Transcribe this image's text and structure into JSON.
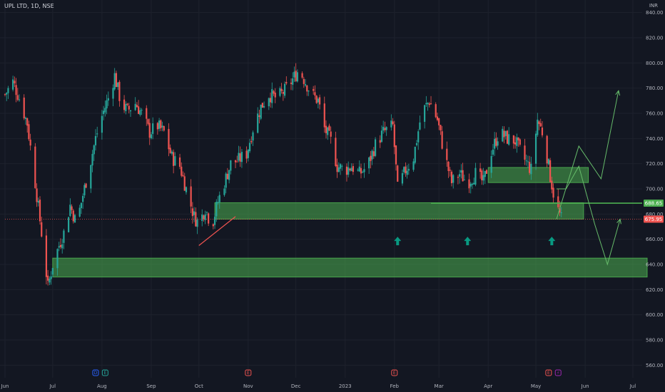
{
  "symbol": {
    "name": "UPL LTD",
    "interval": "1D",
    "exchange": "NSE",
    "title": "UPL LTD, 1D, NSE"
  },
  "currency": "INR",
  "colors": {
    "background": "#131722",
    "up": "#26a69a",
    "down": "#ef5350",
    "zone": "#4caf50",
    "arrow": "#089981",
    "projection": "#66bb6a",
    "text": "#b2b5be"
  },
  "chart_data": {
    "type": "candlestick",
    "y_range": [
      550,
      850
    ],
    "y_ticks": [
      560,
      580,
      600,
      620,
      640,
      660,
      680,
      700,
      720,
      740,
      760,
      780,
      800,
      820,
      840
    ],
    "y_tick_labels": [
      "560.00",
      "580.00",
      "600.00",
      "620.00",
      "640.00",
      "660.00",
      "680.00",
      "700.00",
      "720.00",
      "740.00",
      "760.00",
      "780.00",
      "800.00",
      "820.00",
      "840.00"
    ],
    "x_range": [
      "2022-06-01",
      "2023-07-10"
    ],
    "x_ticks": [
      {
        "date": "2022-06-01",
        "label": "Jun"
      },
      {
        "date": "2022-07-01",
        "label": "Jul"
      },
      {
        "date": "2022-08-01",
        "label": "Aug"
      },
      {
        "date": "2022-09-01",
        "label": "Sep"
      },
      {
        "date": "2022-10-01",
        "label": "Oct"
      },
      {
        "date": "2022-11-01",
        "label": "Nov"
      },
      {
        "date": "2022-12-01",
        "label": "Dec"
      },
      {
        "date": "2023-01-01",
        "label": "2023"
      },
      {
        "date": "2023-02-01",
        "label": "Feb"
      },
      {
        "date": "2023-03-01",
        "label": "Mar"
      },
      {
        "date": "2023-04-01",
        "label": "Apr"
      },
      {
        "date": "2023-05-01",
        "label": "May"
      },
      {
        "date": "2023-06-01",
        "label": "Jun"
      },
      {
        "date": "2023-07-01",
        "label": "Jul"
      }
    ],
    "price_path": [
      [
        "2022-06-01",
        775
      ],
      [
        "2022-06-06",
        785
      ],
      [
        "2022-06-10",
        772
      ],
      [
        "2022-06-15",
        752
      ],
      [
        "2022-06-20",
        705
      ],
      [
        "2022-06-24",
        665
      ],
      [
        "2022-06-28",
        622
      ],
      [
        "2022-07-01",
        640
      ],
      [
        "2022-07-05",
        655
      ],
      [
        "2022-07-08",
        665
      ],
      [
        "2022-07-12",
        687
      ],
      [
        "2022-07-16",
        672
      ],
      [
        "2022-07-20",
        695
      ],
      [
        "2022-07-24",
        717
      ],
      [
        "2022-07-28",
        740
      ],
      [
        "2022-08-01",
        758
      ],
      [
        "2022-08-05",
        772
      ],
      [
        "2022-08-09",
        790
      ],
      [
        "2022-08-13",
        768
      ],
      [
        "2022-08-17",
        762
      ],
      [
        "2022-08-22",
        768
      ],
      [
        "2022-08-26",
        760
      ],
      [
        "2022-08-31",
        745
      ],
      [
        "2022-09-05",
        750
      ],
      [
        "2022-09-09",
        745
      ],
      [
        "2022-09-14",
        725
      ],
      [
        "2022-09-19",
        718
      ],
      [
        "2022-09-23",
        700
      ],
      [
        "2022-09-28",
        678
      ],
      [
        "2022-10-01",
        672
      ],
      [
        "2022-10-05",
        685
      ],
      [
        "2022-10-09",
        670
      ],
      [
        "2022-10-13",
        690
      ],
      [
        "2022-10-17",
        705
      ],
      [
        "2022-10-21",
        720
      ],
      [
        "2022-10-26",
        723
      ],
      [
        "2022-10-31",
        728
      ],
      [
        "2022-11-04",
        748
      ],
      [
        "2022-11-09",
        765
      ],
      [
        "2022-11-14",
        775
      ],
      [
        "2022-11-19",
        772
      ],
      [
        "2022-11-24",
        778
      ],
      [
        "2022-11-29",
        787
      ],
      [
        "2022-12-03",
        795
      ],
      [
        "2022-12-07",
        785
      ],
      [
        "2022-12-11",
        775
      ],
      [
        "2022-12-15",
        770
      ],
      [
        "2022-12-19",
        748
      ],
      [
        "2022-12-23",
        738
      ],
      [
        "2022-12-27",
        718
      ],
      [
        "2023-01-01",
        715
      ],
      [
        "2023-01-05",
        718
      ],
      [
        "2023-01-10",
        712
      ],
      [
        "2023-01-15",
        718
      ],
      [
        "2023-01-20",
        735
      ],
      [
        "2023-01-25",
        745
      ],
      [
        "2023-01-31",
        750
      ],
      [
        "2023-02-03",
        700
      ],
      [
        "2023-02-08",
        715
      ],
      [
        "2023-02-13",
        725
      ],
      [
        "2023-02-18",
        760
      ],
      [
        "2023-02-23",
        770
      ],
      [
        "2023-02-28",
        755
      ],
      [
        "2023-03-04",
        730
      ],
      [
        "2023-03-09",
        705
      ],
      [
        "2023-03-14",
        712
      ],
      [
        "2023-03-19",
        705
      ],
      [
        "2023-03-24",
        712
      ],
      [
        "2023-03-29",
        705
      ],
      [
        "2023-04-03",
        730
      ],
      [
        "2023-04-08",
        745
      ],
      [
        "2023-04-13",
        740
      ],
      [
        "2023-04-18",
        738
      ],
      [
        "2023-04-23",
        725
      ],
      [
        "2023-04-28",
        715
      ],
      [
        "2023-05-02",
        755
      ],
      [
        "2023-05-06",
        742
      ],
      [
        "2023-05-10",
        710
      ],
      [
        "2023-05-13",
        690
      ],
      [
        "2023-05-17",
        675.95
      ]
    ],
    "zones": [
      {
        "name": "upper-resistance-zone",
        "from": "2023-04-01",
        "to": "2023-06-03",
        "low": 705,
        "high": 717
      },
      {
        "name": "mid-support-zone",
        "from": "2022-10-11",
        "to": "2023-05-31",
        "low": 676,
        "high": 689
      },
      {
        "name": "lower-support-zone",
        "from": "2022-07-01",
        "to": "2023-07-10",
        "low": 630,
        "high": 645
      }
    ],
    "hlines": [
      {
        "name": "level-688-line",
        "value": 688.65,
        "from": "2023-02-24",
        "color": "#4caf50"
      },
      {
        "name": "current-price-line",
        "value": 675.95,
        "from": "2022-06-01",
        "color": "#ef5350",
        "style": "dotted"
      }
    ],
    "trendline": {
      "from": [
        "2022-10-01",
        655
      ],
      "to": [
        "2022-10-24",
        678
      ],
      "color": "#ef5350"
    },
    "arrows": [
      {
        "date": "2023-02-03",
        "value": 662
      },
      {
        "date": "2023-03-19",
        "value": 662
      },
      {
        "date": "2023-05-11",
        "value": 662
      }
    ],
    "projections": [
      {
        "name": "projection-up",
        "points": [
          [
            "2023-05-14",
            676
          ],
          [
            "2023-05-28",
            734
          ],
          [
            "2023-06-11",
            708
          ],
          [
            "2023-06-22",
            778
          ]
        ]
      },
      {
        "name": "projection-down",
        "points": [
          [
            "2023-05-14",
            700
          ],
          [
            "2023-05-20",
            700
          ],
          [
            "2023-05-28",
            718
          ],
          [
            "2023-06-07",
            672
          ],
          [
            "2023-06-15",
            640
          ],
          [
            "2023-06-23",
            676
          ]
        ]
      }
    ],
    "price_tags": [
      {
        "value": 688.65,
        "label": "688.65",
        "color": "#4caf50"
      },
      {
        "value": 675.95,
        "label": "675.95",
        "color": "#ef5350"
      }
    ],
    "events": [
      {
        "date": "2022-07-28",
        "letter": "D",
        "color": "#2962ff"
      },
      {
        "date": "2022-08-03",
        "letter": "E",
        "color": "#26a69a"
      },
      {
        "date": "2022-11-01",
        "letter": "E",
        "color": "#ef5350"
      },
      {
        "date": "2023-02-01",
        "letter": "E",
        "color": "#ef5350"
      },
      {
        "date": "2023-05-09",
        "letter": "E",
        "color": "#ef5350"
      },
      {
        "date": "2023-05-15",
        "letter": "⚡",
        "color": "#9c27b0"
      }
    ]
  }
}
